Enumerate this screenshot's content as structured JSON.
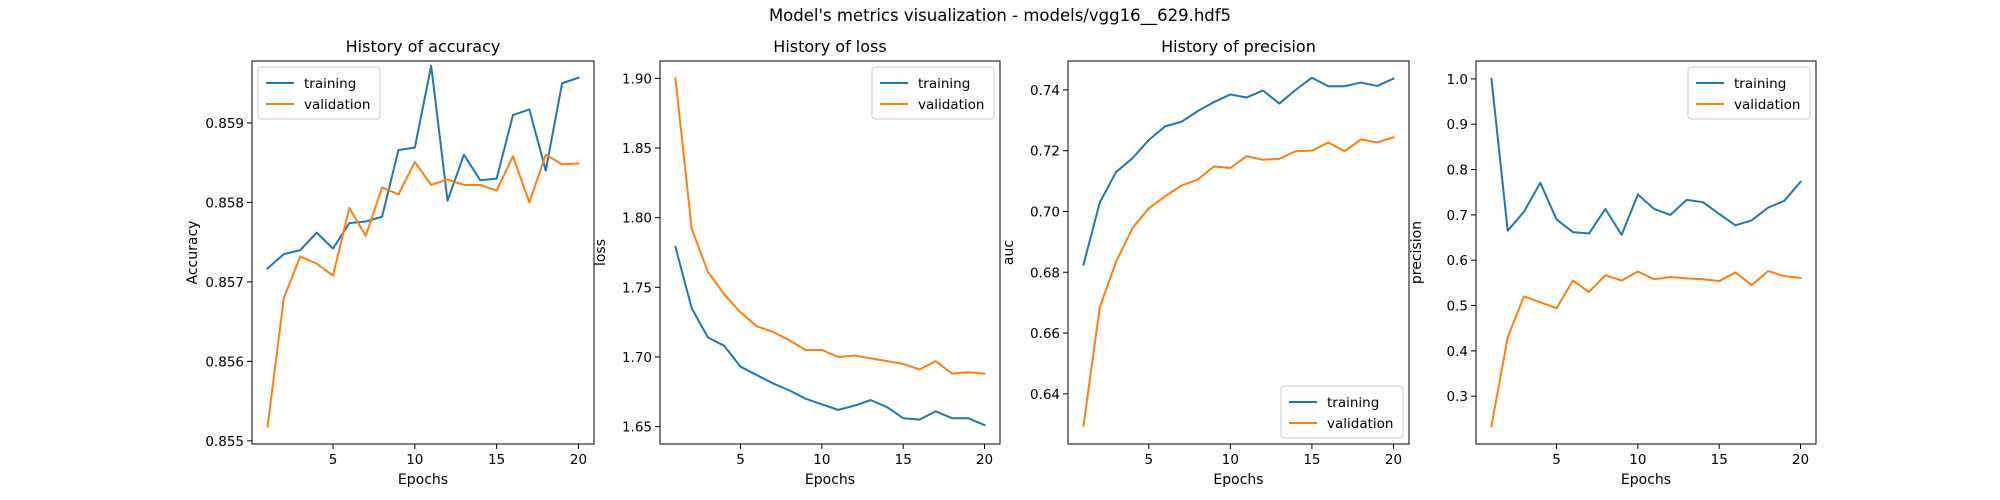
{
  "suptitle": "Model's metrics visualization - models/vgg16__629.hdf5",
  "colors": {
    "training": "#1f77b4",
    "validation": "#ff7f0e"
  },
  "chart_data": [
    {
      "type": "line",
      "title": "History of accuracy",
      "xlabel": "Epochs",
      "ylabel": "Accuracy",
      "xlim": [
        0.05,
        20.95
      ],
      "ylim": [
        0.85496,
        0.85978
      ],
      "xticks": [
        5,
        10,
        15,
        20
      ],
      "yticks": [
        0.855,
        0.856,
        0.857,
        0.858,
        0.859
      ],
      "ytick_labels": [
        "0.855",
        "0.856",
        "0.857",
        "0.858",
        "0.859"
      ],
      "grid": false,
      "legend": "upper left",
      "x": [
        1,
        2,
        3,
        4,
        5,
        6,
        7,
        8,
        9,
        10,
        11,
        12,
        13,
        14,
        15,
        16,
        17,
        18,
        19,
        20
      ],
      "series": [
        {
          "name": "training",
          "values": [
            0.85717,
            0.85735,
            0.8574,
            0.85762,
            0.85742,
            0.85774,
            0.85776,
            0.85782,
            0.85866,
            0.85869,
            0.85972,
            0.85802,
            0.8586,
            0.85828,
            0.8583,
            0.8591,
            0.85917,
            0.8584,
            0.8595,
            0.85957
          ]
        },
        {
          "name": "validation",
          "values": [
            0.85518,
            0.8568,
            0.85732,
            0.85723,
            0.85708,
            0.85793,
            0.85758,
            0.85819,
            0.8581,
            0.85851,
            0.85822,
            0.85829,
            0.85822,
            0.85822,
            0.85815,
            0.85858,
            0.858,
            0.8586,
            0.85848,
            0.85849
          ]
        }
      ]
    },
    {
      "type": "line",
      "title": "History of loss",
      "xlabel": "Epochs",
      "ylabel": "loss",
      "xlim": [
        0.05,
        20.95
      ],
      "ylim": [
        1.6375,
        1.9125
      ],
      "xticks": [
        5,
        10,
        15,
        20
      ],
      "yticks": [
        1.65,
        1.7,
        1.75,
        1.8,
        1.85,
        1.9
      ],
      "ytick_labels": [
        "1.65",
        "1.70",
        "1.75",
        "1.80",
        "1.85",
        "1.90"
      ],
      "grid": false,
      "legend": "upper right",
      "x": [
        1,
        2,
        3,
        4,
        5,
        6,
        7,
        8,
        9,
        10,
        11,
        12,
        13,
        14,
        15,
        16,
        17,
        18,
        19,
        20
      ],
      "series": [
        {
          "name": "training",
          "values": [
            1.779,
            1.735,
            1.714,
            1.708,
            1.693,
            1.687,
            1.681,
            1.676,
            1.67,
            1.666,
            1.662,
            1.665,
            1.669,
            1.664,
            1.656,
            1.655,
            1.661,
            1.656,
            1.656,
            1.651
          ]
        },
        {
          "name": "validation",
          "values": [
            1.9,
            1.792,
            1.761,
            1.745,
            1.732,
            1.722,
            1.718,
            1.712,
            1.705,
            1.705,
            1.7,
            1.701,
            1.699,
            1.697,
            1.695,
            1.691,
            1.697,
            1.688,
            1.689,
            1.688
          ]
        }
      ]
    },
    {
      "type": "line",
      "title": "History of precision",
      "xlabel": "Epochs",
      "ylabel": "auc",
      "xlim": [
        0.05,
        20.95
      ],
      "ylim": [
        0.6235,
        0.7495
      ],
      "xticks": [
        5,
        10,
        15,
        20
      ],
      "yticks": [
        0.64,
        0.66,
        0.68,
        0.7,
        0.72,
        0.74
      ],
      "ytick_labels": [
        "0.64",
        "0.66",
        "0.68",
        "0.70",
        "0.72",
        "0.74"
      ],
      "grid": false,
      "legend": "lower right",
      "x": [
        1,
        2,
        3,
        4,
        5,
        6,
        7,
        8,
        9,
        10,
        11,
        12,
        13,
        14,
        15,
        16,
        17,
        18,
        19,
        20
      ],
      "series": [
        {
          "name": "training",
          "values": [
            0.6825,
            0.703,
            0.713,
            0.7175,
            0.7235,
            0.728,
            0.7295,
            0.733,
            0.736,
            0.7385,
            0.7375,
            0.7398,
            0.7355,
            0.74,
            0.744,
            0.7412,
            0.7412,
            0.7424,
            0.7413,
            0.7437
          ]
        },
        {
          "name": "validation",
          "values": [
            0.6295,
            0.6685,
            0.6835,
            0.6945,
            0.701,
            0.705,
            0.7085,
            0.7105,
            0.7148,
            0.7143,
            0.7182,
            0.717,
            0.7173,
            0.7198,
            0.72,
            0.7227,
            0.7198,
            0.7237,
            0.7227,
            0.7244
          ]
        }
      ]
    },
    {
      "type": "line",
      "title": "",
      "xlabel": "Epochs",
      "ylabel": "precision",
      "xlim": [
        0.05,
        20.95
      ],
      "ylim": [
        0.1945,
        1.0395
      ],
      "xticks": [
        5,
        10,
        15,
        20
      ],
      "yticks": [
        0.3,
        0.4,
        0.5,
        0.6,
        0.7,
        0.8,
        0.9,
        1.0
      ],
      "ytick_labels": [
        "0.3",
        "0.4",
        "0.5",
        "0.6",
        "0.7",
        "0.8",
        "0.9",
        "1.0"
      ],
      "grid": false,
      "legend": "upper right",
      "x": [
        1,
        2,
        3,
        4,
        5,
        6,
        7,
        8,
        9,
        10,
        11,
        12,
        13,
        14,
        15,
        16,
        17,
        18,
        19,
        20
      ],
      "series": [
        {
          "name": "training",
          "values": [
            1.0,
            0.665,
            0.707,
            0.771,
            0.69,
            0.662,
            0.659,
            0.713,
            0.656,
            0.745,
            0.713,
            0.7,
            0.733,
            0.728,
            0.702,
            0.677,
            0.688,
            0.716,
            0.731,
            0.773
          ]
        },
        {
          "name": "validation",
          "values": [
            0.234,
            0.43,
            0.52,
            0.507,
            0.494,
            0.555,
            0.53,
            0.567,
            0.555,
            0.575,
            0.558,
            0.563,
            0.56,
            0.558,
            0.554,
            0.573,
            0.545,
            0.576,
            0.565,
            0.561
          ]
        }
      ]
    }
  ]
}
